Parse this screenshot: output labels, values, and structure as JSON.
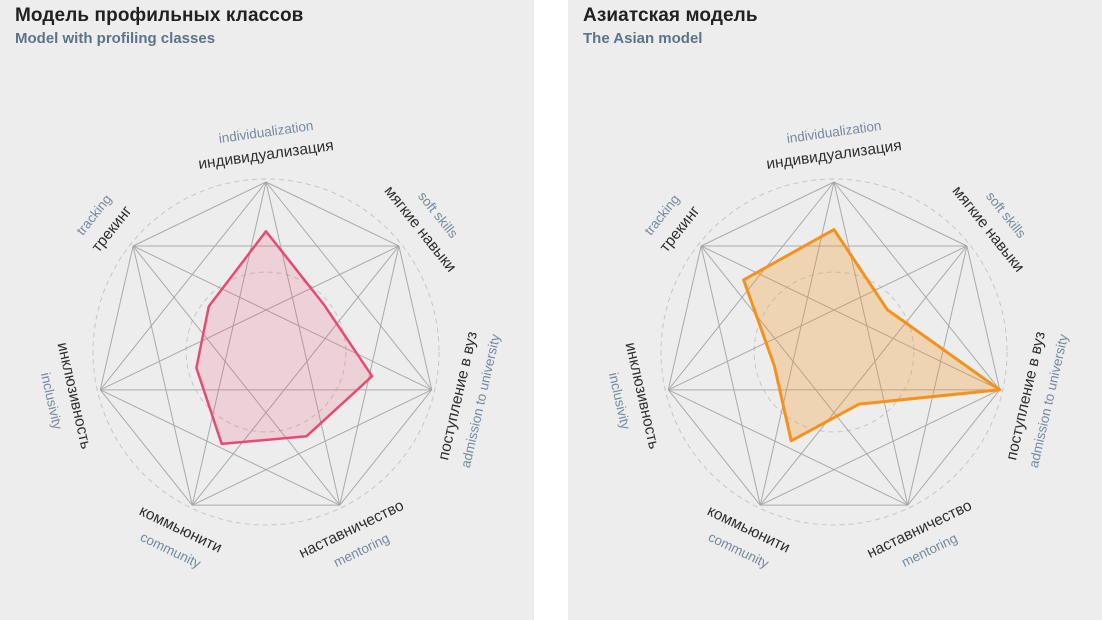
{
  "page": {
    "background": "#ffffff",
    "panel_background": "#ededed"
  },
  "panels": [
    {
      "title": "Модель профильных классов",
      "subtitle": "Model with profiling classes"
    },
    {
      "title": "Азиатская модель",
      "subtitle": "The Asian model"
    }
  ],
  "style": {
    "title_color": "#212121",
    "subtitle_color": "#5d7389",
    "axis_label_ru_color": "#2f2f2f",
    "axis_label_en_color": "#7589a0",
    "web_line_color": "#a6a6a6",
    "dashed_circle_color": "#c6c6c6"
  },
  "chart_data": [
    {
      "type": "radar",
      "title": "Модель профильных классов",
      "subtitle": "Model with profiling classes",
      "scale": [
        0,
        1
      ],
      "grid": {
        "web": "complete-graph-between-vertices",
        "dashed_circles_at": [
          0.47,
          1.0
        ],
        "legend": "none"
      },
      "axes": [
        {
          "key": "individualization",
          "ru": "индивидуализация",
          "en": "individualization"
        },
        {
          "key": "soft-skills",
          "ru": "мягкие навыки",
          "en": "soft skills"
        },
        {
          "key": "admission",
          "ru": "поступление в вуз",
          "en": "admission to university"
        },
        {
          "key": "mentoring",
          "ru": "наставничество",
          "en": "mentoring"
        },
        {
          "key": "community",
          "ru": "коммьюнити",
          "en": "community"
        },
        {
          "key": "inclusivity",
          "ru": "инклюзивность",
          "en": "inclusivity"
        },
        {
          "key": "tracking",
          "ru": "трекинг",
          "en": "tracking"
        }
      ],
      "values": [
        0.71,
        0.44,
        0.64,
        0.55,
        0.6,
        0.42,
        0.43
      ],
      "series_color": "#e84a70",
      "fill_color": "rgba(232, 74, 112, 0.17)",
      "stroke_width": 2.5
    },
    {
      "type": "radar",
      "title": "Азиатская модель",
      "subtitle": "The Asian model",
      "scale": [
        0,
        1
      ],
      "grid": {
        "web": "complete-graph-between-vertices",
        "dashed_circles_at": [
          0.47,
          1.0
        ],
        "legend": "none"
      },
      "axes": [
        {
          "key": "individualization",
          "ru": "индивидуализация",
          "en": "individualization"
        },
        {
          "key": "soft-skills",
          "ru": "мягкие навыки",
          "en": "soft skills"
        },
        {
          "key": "admission",
          "ru": "поступление в вуз",
          "en": "admission to university"
        },
        {
          "key": "mentoring",
          "ru": "наставничество",
          "en": "mentoring"
        },
        {
          "key": "community",
          "ru": "коммьюнити",
          "en": "community"
        },
        {
          "key": "inclusivity",
          "ru": "инклюзивность",
          "en": "inclusivity"
        },
        {
          "key": "tracking",
          "ru": "трекинг",
          "en": "tracking"
        }
      ],
      "values": [
        0.72,
        0.4,
        1.0,
        0.34,
        0.58,
        0.36,
        0.68
      ],
      "series_color": "#f5921e",
      "fill_color": "rgba(245, 146, 30, 0.28)",
      "stroke_width": 3
    }
  ]
}
